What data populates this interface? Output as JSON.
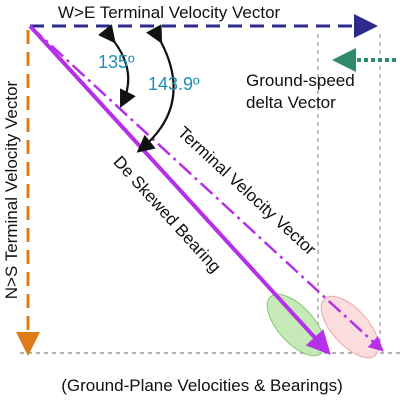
{
  "title": "W>E Terminal Velocity Vector",
  "angles": [
    "135º",
    "143.9º"
  ],
  "labels": {
    "ground_speed": [
      "Ground-speed",
      "delta Vector"
    ],
    "ns_vector": "N>S Terminal Velocity Vector",
    "deskewed": "De Skewed Bearing",
    "terminal": "Terminal Velocity Vector"
  },
  "caption": "(Ground-Plane Velocities & Bearings)"
}
